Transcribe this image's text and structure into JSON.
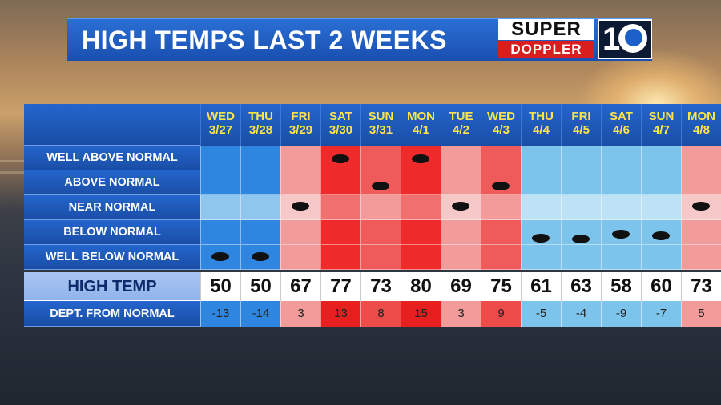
{
  "title": "HIGH TEMPS LAST 2 WEEKS",
  "logo": {
    "top_text": "SUPER",
    "bottom_text": "DOPPLER",
    "number": "10"
  },
  "row_labels": [
    "WELL ABOVE NORMAL",
    "ABOVE NORMAL",
    "NEAR NORMAL",
    "BELOW NORMAL",
    "WELL BELOW NORMAL"
  ],
  "high_temp_label": "HIGH TEMP",
  "dept_label": "DEPT. FROM NORMAL",
  "colors": {
    "cold_dark": "#2e86e0",
    "cold_light": "#7cc4ec",
    "warm_light": "#f29b9b",
    "warm": "#ee4b4b",
    "warm_dark": "#e81f1f"
  },
  "chart_data": {
    "type": "table",
    "columns": [
      {
        "day": "WED",
        "date": "3/27",
        "high": "50",
        "dept": "-13",
        "category": "WELL BELOW NORMAL"
      },
      {
        "day": "THU",
        "date": "3/28",
        "high": "50",
        "dept": "-14",
        "category": "WELL BELOW NORMAL"
      },
      {
        "day": "FRI",
        "date": "3/29",
        "high": "67",
        "dept": "3",
        "category": "NEAR NORMAL"
      },
      {
        "day": "SAT",
        "date": "3/30",
        "high": "77",
        "dept": "13",
        "category": "WELL ABOVE NORMAL"
      },
      {
        "day": "SUN",
        "date": "3/31",
        "high": "73",
        "dept": "8",
        "category": "ABOVE NORMAL"
      },
      {
        "day": "MON",
        "date": "4/1",
        "high": "80",
        "dept": "15",
        "category": "WELL ABOVE NORMAL"
      },
      {
        "day": "TUE",
        "date": "4/2",
        "high": "69",
        "dept": "3",
        "category": "NEAR NORMAL"
      },
      {
        "day": "WED",
        "date": "4/3",
        "high": "75",
        "dept": "9",
        "category": "ABOVE NORMAL"
      },
      {
        "day": "THU",
        "date": "4/4",
        "high": "61",
        "dept": "-5",
        "category": "BELOW NORMAL"
      },
      {
        "day": "FRI",
        "date": "4/5",
        "high": "63",
        "dept": "-4",
        "category": "BELOW NORMAL"
      },
      {
        "day": "SAT",
        "date": "4/6",
        "high": "58",
        "dept": "-9",
        "category": "BELOW NORMAL"
      },
      {
        "day": "SUN",
        "date": "4/7",
        "high": "60",
        "dept": "-7",
        "category": "BELOW NORMAL"
      },
      {
        "day": "MON",
        "date": "4/8",
        "high": "73",
        "dept": "5",
        "category": "NEAR NORMAL"
      }
    ]
  }
}
